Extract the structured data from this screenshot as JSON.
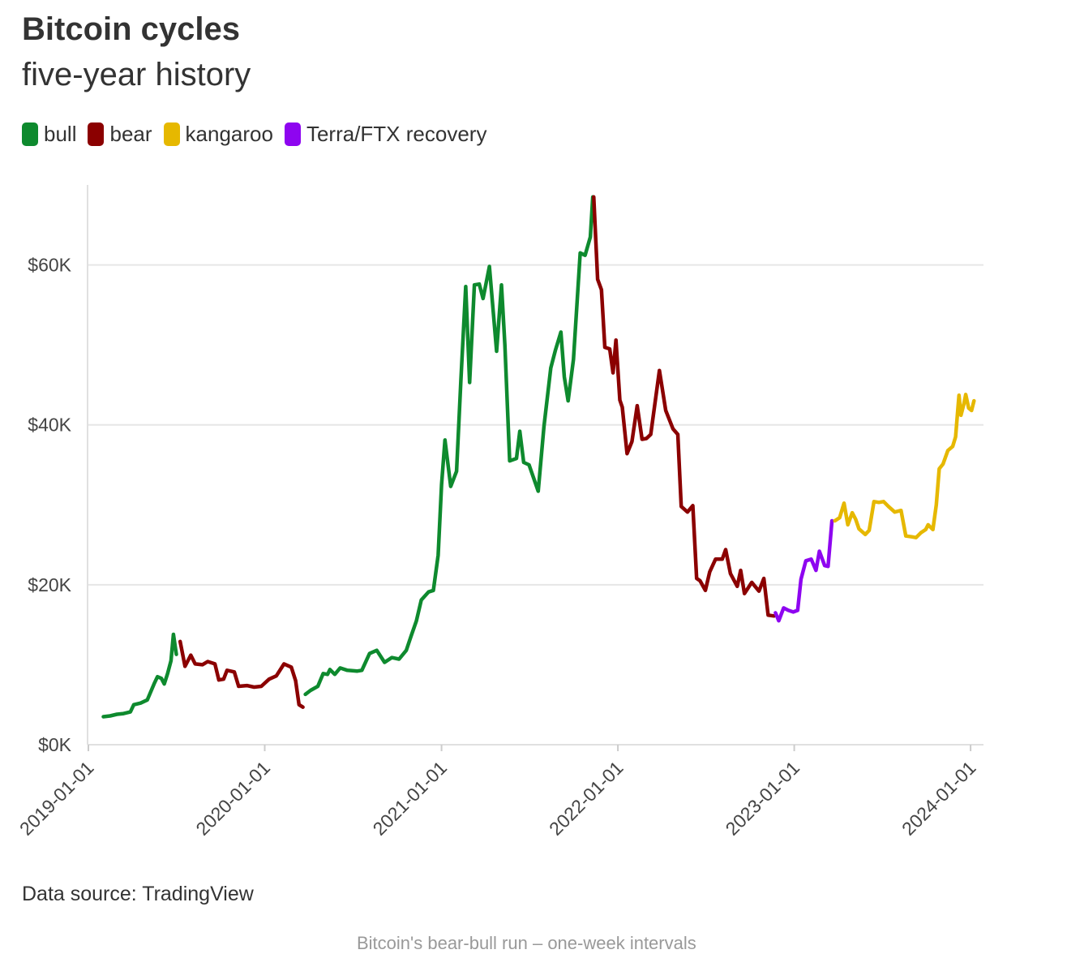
{
  "chart_data": {
    "type": "line",
    "title": "Bitcoin cycles",
    "subtitle": "five-year history",
    "source": "Data source: TradingView",
    "footnote": "Bitcoin's bear-bull run – one-week intervals",
    "xlabel": "",
    "ylabel": "",
    "x_range": [
      "2019-01-01",
      "2024-01-10"
    ],
    "ylim": [
      0,
      70000
    ],
    "y_ticks": [
      0,
      20000,
      40000,
      60000
    ],
    "y_tick_labels": [
      "$0K",
      "$20K",
      "$40K",
      "$60K"
    ],
    "x_ticks": [
      "2019-01-01",
      "2020-01-01",
      "2021-01-01",
      "2022-01-01",
      "2023-01-01",
      "2024-01-01"
    ],
    "x_tick_labels": [
      "2019-01-01",
      "2020-01-01",
      "2021-01-01",
      "2022-01-01",
      "2023-01-01",
      "2024-01-01"
    ],
    "grid": "horizontal",
    "legend_position": "top-left",
    "series": [
      {
        "name": "bull",
        "color": "#0e8a2e",
        "points": [
          [
            "2019-02-01",
            3500
          ],
          [
            "2019-02-15",
            3600
          ],
          [
            "2019-03-01",
            3800
          ],
          [
            "2019-03-15",
            3900
          ],
          [
            "2019-03-29",
            4100
          ],
          [
            "2019-04-05",
            5000
          ],
          [
            "2019-04-19",
            5200
          ],
          [
            "2019-05-03",
            5600
          ],
          [
            "2019-05-17",
            7600
          ],
          [
            "2019-05-24",
            8500
          ],
          [
            "2019-06-01",
            8300
          ],
          [
            "2019-06-07",
            7600
          ],
          [
            "2019-06-14",
            8900
          ],
          [
            "2019-06-21",
            10500
          ],
          [
            "2019-06-26",
            13800
          ],
          [
            "2019-07-02",
            11300
          ]
        ]
      },
      {
        "name": "bear",
        "color": "#8b0000",
        "points": [
          [
            "2019-07-10",
            12900
          ],
          [
            "2019-07-20",
            9800
          ],
          [
            "2019-08-01",
            11200
          ],
          [
            "2019-08-10",
            10100
          ],
          [
            "2019-08-25",
            10000
          ],
          [
            "2019-09-05",
            10400
          ],
          [
            "2019-09-20",
            10100
          ],
          [
            "2019-09-28",
            8100
          ],
          [
            "2019-10-08",
            8200
          ],
          [
            "2019-10-15",
            9300
          ],
          [
            "2019-10-30",
            9100
          ],
          [
            "2019-11-08",
            7300
          ],
          [
            "2019-11-25",
            7400
          ],
          [
            "2019-12-10",
            7200
          ],
          [
            "2019-12-25",
            7300
          ],
          [
            "2020-01-10",
            8200
          ],
          [
            "2020-01-25",
            8600
          ],
          [
            "2020-02-10",
            10100
          ],
          [
            "2020-02-25",
            9700
          ],
          [
            "2020-03-05",
            8000
          ],
          [
            "2020-03-12",
            5000
          ],
          [
            "2020-03-20",
            4700
          ]
        ]
      },
      {
        "name": "bull",
        "color": "#0e8a2e",
        "points": [
          [
            "2020-03-25",
            6300
          ],
          [
            "2020-04-05",
            6800
          ],
          [
            "2020-04-20",
            7300
          ],
          [
            "2020-05-01",
            8900
          ],
          [
            "2020-05-10",
            8800
          ],
          [
            "2020-05-15",
            9400
          ],
          [
            "2020-05-25",
            8800
          ],
          [
            "2020-06-05",
            9600
          ],
          [
            "2020-06-20",
            9300
          ],
          [
            "2020-07-10",
            9200
          ],
          [
            "2020-07-20",
            9300
          ],
          [
            "2020-08-05",
            11400
          ],
          [
            "2020-08-20",
            11800
          ],
          [
            "2020-09-05",
            10300
          ],
          [
            "2020-09-20",
            10900
          ],
          [
            "2020-10-05",
            10700
          ],
          [
            "2020-10-20",
            11800
          ],
          [
            "2020-10-30",
            13600
          ],
          [
            "2020-11-10",
            15500
          ],
          [
            "2020-11-20",
            18100
          ],
          [
            "2020-12-05",
            19100
          ],
          [
            "2020-12-15",
            19300
          ],
          [
            "2020-12-25",
            23700
          ],
          [
            "2021-01-01",
            32500
          ],
          [
            "2021-01-08",
            38100
          ],
          [
            "2021-01-20",
            32300
          ],
          [
            "2021-02-01",
            34200
          ],
          [
            "2021-02-10",
            45500
          ],
          [
            "2021-02-20",
            57300
          ],
          [
            "2021-02-28",
            45300
          ],
          [
            "2021-03-10",
            57500
          ],
          [
            "2021-03-20",
            57600
          ],
          [
            "2021-03-28",
            55800
          ],
          [
            "2021-04-10",
            59800
          ],
          [
            "2021-04-25",
            49200
          ],
          [
            "2021-05-05",
            57500
          ],
          [
            "2021-05-12",
            50000
          ],
          [
            "2021-05-22",
            35500
          ],
          [
            "2021-06-05",
            35800
          ],
          [
            "2021-06-12",
            39200
          ],
          [
            "2021-06-20",
            35300
          ],
          [
            "2021-07-01",
            35000
          ],
          [
            "2021-07-20",
            31700
          ],
          [
            "2021-08-01",
            39800
          ],
          [
            "2021-08-15",
            47100
          ],
          [
            "2021-08-25",
            49400
          ],
          [
            "2021-09-05",
            51600
          ],
          [
            "2021-09-12",
            46000
          ],
          [
            "2021-09-20",
            43000
          ],
          [
            "2021-10-01",
            48200
          ],
          [
            "2021-10-15",
            61500
          ],
          [
            "2021-10-25",
            61200
          ],
          [
            "2021-11-05",
            63500
          ],
          [
            "2021-11-10",
            68500
          ]
        ]
      },
      {
        "name": "bear",
        "color": "#8b0000",
        "points": [
          [
            "2021-11-12",
            68500
          ],
          [
            "2021-11-20",
            58200
          ],
          [
            "2021-11-28",
            56900
          ],
          [
            "2021-12-05",
            49700
          ],
          [
            "2021-12-15",
            49500
          ],
          [
            "2021-12-22",
            46500
          ],
          [
            "2021-12-28",
            50600
          ],
          [
            "2022-01-05",
            43100
          ],
          [
            "2022-01-10",
            42200
          ],
          [
            "2022-01-20",
            36400
          ],
          [
            "2022-01-30",
            37900
          ],
          [
            "2022-02-10",
            42400
          ],
          [
            "2022-02-20",
            38200
          ],
          [
            "2022-03-01",
            38300
          ],
          [
            "2022-03-10",
            38800
          ],
          [
            "2022-03-28",
            46800
          ],
          [
            "2022-04-10",
            41800
          ],
          [
            "2022-04-25",
            39500
          ],
          [
            "2022-05-05",
            38800
          ],
          [
            "2022-05-12",
            29800
          ],
          [
            "2022-05-25",
            29100
          ],
          [
            "2022-06-05",
            29900
          ],
          [
            "2022-06-13",
            20800
          ],
          [
            "2022-06-20",
            20500
          ],
          [
            "2022-07-01",
            19300
          ],
          [
            "2022-07-10",
            21600
          ],
          [
            "2022-07-22",
            23200
          ],
          [
            "2022-08-05",
            23200
          ],
          [
            "2022-08-12",
            24400
          ],
          [
            "2022-08-22",
            21400
          ],
          [
            "2022-09-05",
            19800
          ],
          [
            "2022-09-12",
            21800
          ],
          [
            "2022-09-20",
            18900
          ],
          [
            "2022-10-05",
            20300
          ],
          [
            "2022-10-20",
            19200
          ],
          [
            "2022-10-30",
            20800
          ],
          [
            "2022-11-08",
            16200
          ],
          [
            "2022-11-20",
            16100
          ]
        ]
      },
      {
        "name": "Terra/FTX recovery",
        "color": "#8e05f0",
        "points": [
          [
            "2022-11-23",
            16500
          ],
          [
            "2022-11-30",
            15500
          ],
          [
            "2022-12-10",
            17100
          ],
          [
            "2022-12-20",
            16800
          ],
          [
            "2022-12-30",
            16600
          ],
          [
            "2023-01-08",
            16800
          ],
          [
            "2023-01-15",
            20700
          ],
          [
            "2023-01-25",
            23000
          ],
          [
            "2023-02-05",
            23200
          ],
          [
            "2023-02-15",
            21800
          ],
          [
            "2023-02-22",
            24200
          ],
          [
            "2023-03-05",
            22400
          ],
          [
            "2023-03-12",
            22300
          ],
          [
            "2023-03-20",
            28000
          ]
        ]
      },
      {
        "name": "kangaroo",
        "color": "#e6b800",
        "points": [
          [
            "2023-03-26",
            28000
          ],
          [
            "2023-04-05",
            28400
          ],
          [
            "2023-04-14",
            30200
          ],
          [
            "2023-04-22",
            27500
          ],
          [
            "2023-05-01",
            29000
          ],
          [
            "2023-05-08",
            28200
          ],
          [
            "2023-05-15",
            27000
          ],
          [
            "2023-05-28",
            26300
          ],
          [
            "2023-06-05",
            26800
          ],
          [
            "2023-06-15",
            30400
          ],
          [
            "2023-06-25",
            30300
          ],
          [
            "2023-07-05",
            30400
          ],
          [
            "2023-07-15",
            29800
          ],
          [
            "2023-07-28",
            29100
          ],
          [
            "2023-08-10",
            29300
          ],
          [
            "2023-08-20",
            26100
          ],
          [
            "2023-09-01",
            26000
          ],
          [
            "2023-09-10",
            25900
          ],
          [
            "2023-09-20",
            26500
          ],
          [
            "2023-09-30",
            26900
          ],
          [
            "2023-10-05",
            27500
          ],
          [
            "2023-10-15",
            26900
          ],
          [
            "2023-10-22",
            30000
          ],
          [
            "2023-10-28",
            34500
          ],
          [
            "2023-11-05",
            35100
          ],
          [
            "2023-11-15",
            36800
          ],
          [
            "2023-11-25",
            37300
          ],
          [
            "2023-12-01",
            38500
          ],
          [
            "2023-12-05",
            41500
          ],
          [
            "2023-12-08",
            43700
          ],
          [
            "2023-12-12",
            41200
          ],
          [
            "2023-12-18",
            42600
          ],
          [
            "2023-12-22",
            43800
          ],
          [
            "2023-12-28",
            42100
          ],
          [
            "2024-01-03",
            41800
          ],
          [
            "2024-01-08",
            43000
          ]
        ]
      }
    ]
  },
  "legend": [
    {
      "label": "bull",
      "color": "#0e8a2e"
    },
    {
      "label": "bear",
      "color": "#8b0000"
    },
    {
      "label": "kangaroo",
      "color": "#e6b800"
    },
    {
      "label": "Terra/FTX recovery",
      "color": "#8e05f0"
    }
  ]
}
